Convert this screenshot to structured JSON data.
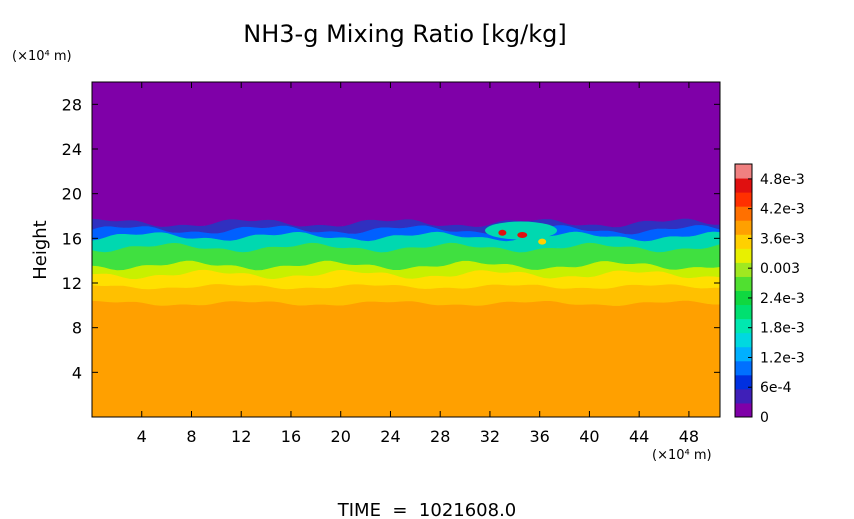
{
  "chart_data": {
    "type": "heatmap",
    "title": "NH3-g Mixing Ratio [kg/kg]",
    "xlabel": "",
    "ylabel": "Height",
    "x_unit": "(×10⁴ m)",
    "y_unit": "(×10⁴ m)",
    "xlim": [
      0,
      50.5
    ],
    "ylim": [
      0,
      30
    ],
    "x_ticks": [
      4,
      8,
      12,
      16,
      20,
      24,
      28,
      32,
      36,
      40,
      44,
      48
    ],
    "y_ticks": [
      4,
      8,
      12,
      16,
      20,
      24,
      28
    ],
    "colorbar": {
      "labels": [
        "4.8e-3",
        "4.2e-3",
        "3.6e-3",
        "0.003",
        "2.4e-3",
        "1.8e-3",
        "1.2e-3",
        "6e-4",
        "0"
      ],
      "label_values": [
        0.0048,
        0.0042,
        0.0036,
        0.003,
        0.0024,
        0.0018,
        0.0012,
        0.0006,
        0
      ],
      "min": 0,
      "max": 0.0051,
      "colors": [
        "#7f00a8",
        "#3f1fb8",
        "#0030e0",
        "#0070ff",
        "#00b0ff",
        "#00d8e0",
        "#00e8b0",
        "#00e070",
        "#10d840",
        "#50e030",
        "#a0e820",
        "#e8f000",
        "#ffd000",
        "#ffa000",
        "#ff7000",
        "#ff3000",
        "#e01010",
        "#f08080"
      ]
    },
    "bands": [
      {
        "from": 0,
        "to": 10.2,
        "color": "#ffa000",
        "value": 0.0039
      },
      {
        "from": 10.2,
        "to": 11.7,
        "color": "#ffc000",
        "value": 0.0037
      },
      {
        "from": 11.7,
        "to": 12.8,
        "color": "#ffe000",
        "value": 0.0035
      },
      {
        "from": 12.8,
        "to": 13.6,
        "color": "#c8f000",
        "value": 0.0032
      },
      {
        "from": 13.6,
        "to": 15.2,
        "color": "#40e040",
        "value": 0.0027
      },
      {
        "from": 15.2,
        "to": 16.2,
        "color": "#00d8b0",
        "value": 0.0021
      },
      {
        "from": 16.2,
        "to": 16.8,
        "color": "#0060ff",
        "value": 0.0012
      },
      {
        "from": 16.8,
        "to": 17.4,
        "color": "#3030c0",
        "value": 0.0004
      },
      {
        "from": 17.4,
        "to": 30,
        "color": "#7f00a8",
        "value": 0
      }
    ]
  },
  "footer": {
    "time_text": "TIME  =  1021608.0"
  }
}
